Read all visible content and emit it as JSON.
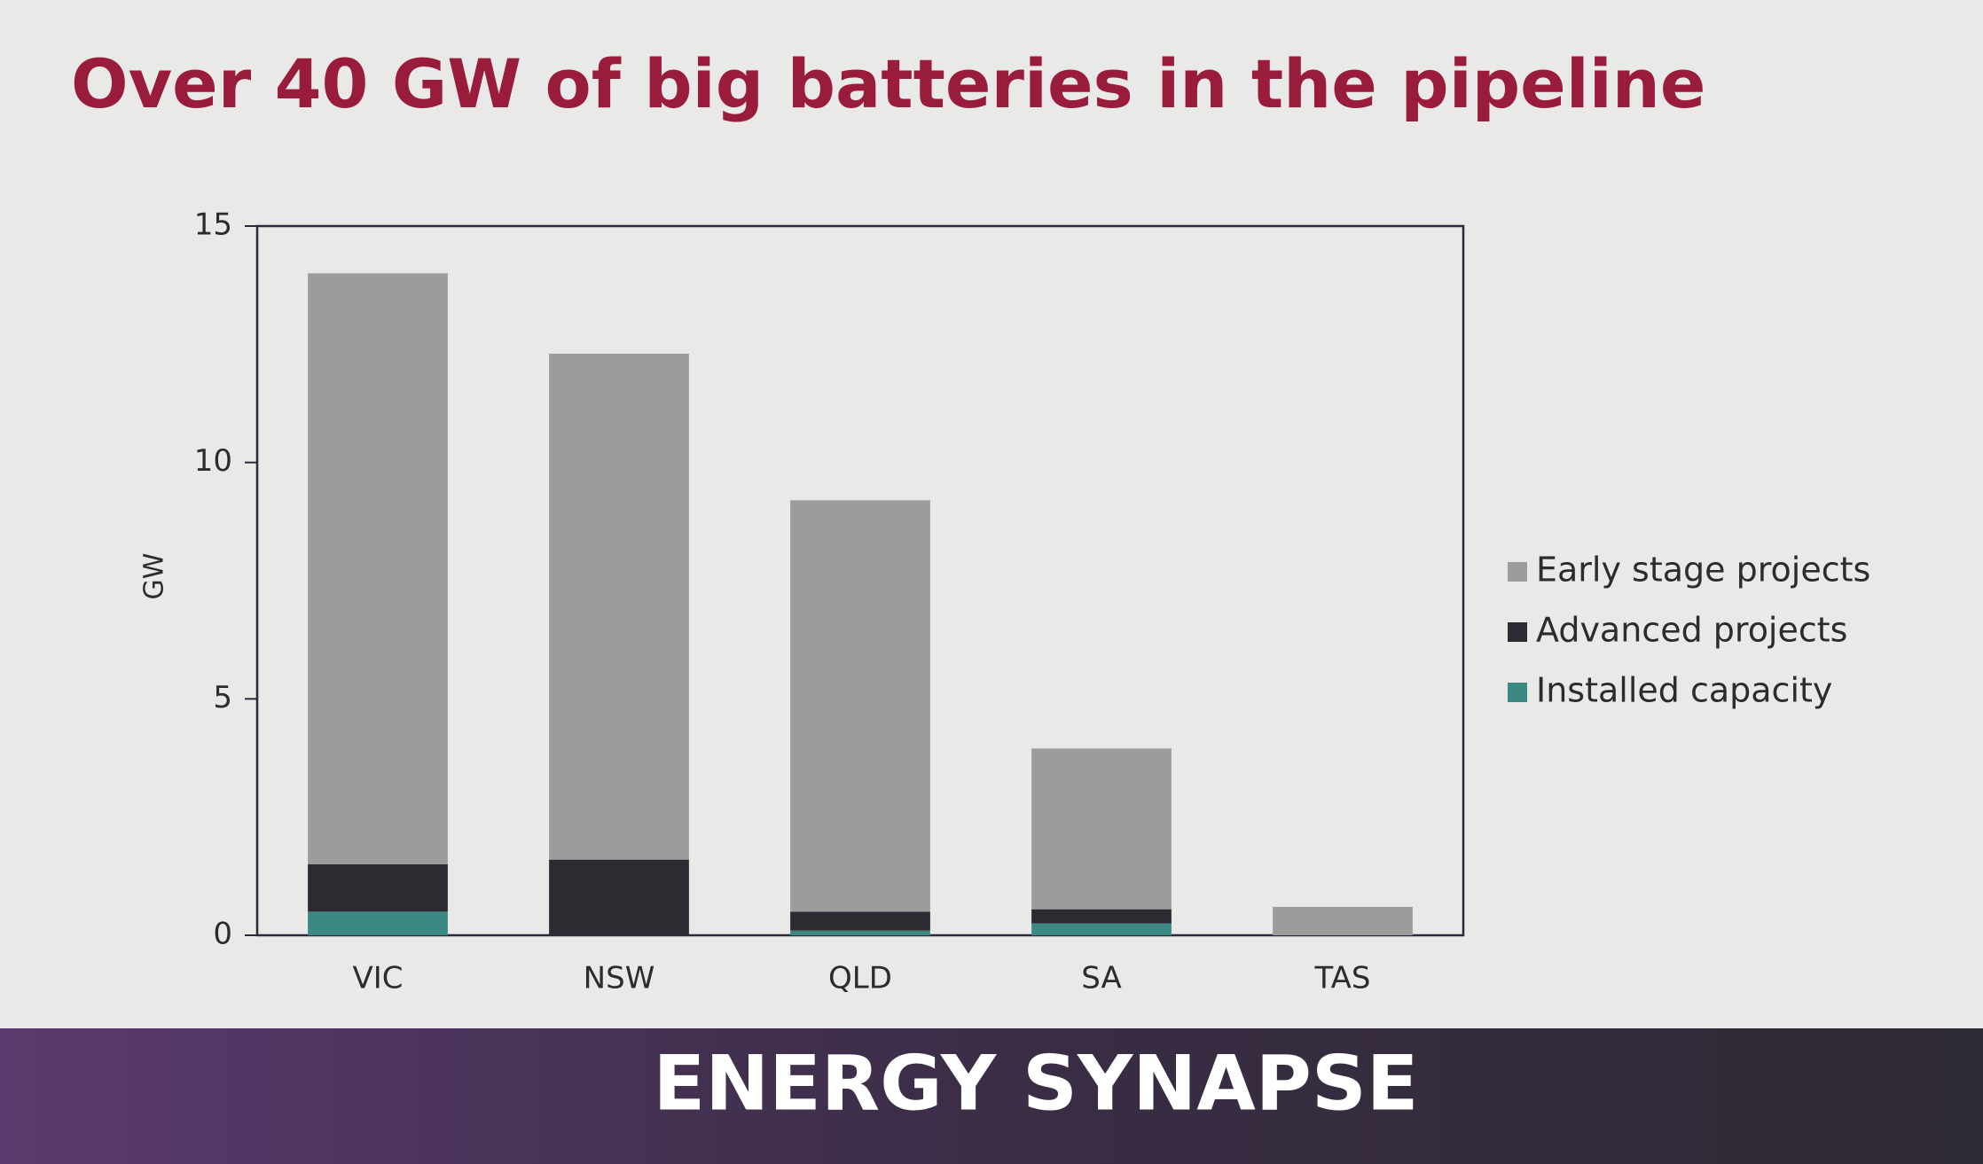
{
  "chart_data": {
    "type": "stacked-bar",
    "title": "Over 40 GW of big batteries in the pipeline",
    "y_label": "GW",
    "categories": [
      "VIC",
      "NSW",
      "QLD",
      "SA",
      "TAS"
    ],
    "series": [
      {
        "name": "Installed capacity",
        "color": "#3b8982",
        "values": [
          0.5,
          0,
          0.1,
          0.25,
          0
        ]
      },
      {
        "name": "Advanced projects",
        "color": "#2d2a32",
        "values": [
          1.0,
          1.6,
          0.4,
          0.3,
          0
        ]
      },
      {
        "name": "Early stage projects",
        "color": "#9b9d9d",
        "values": [
          12.5,
          10.7,
          8.7,
          3.4,
          0.6
        ]
      }
    ],
    "ylim": [
      0,
      15
    ],
    "yticks": [
      0,
      5,
      10,
      15
    ],
    "grid": false,
    "legend": "right",
    "footer": "ENERGY SYNAPSE"
  }
}
